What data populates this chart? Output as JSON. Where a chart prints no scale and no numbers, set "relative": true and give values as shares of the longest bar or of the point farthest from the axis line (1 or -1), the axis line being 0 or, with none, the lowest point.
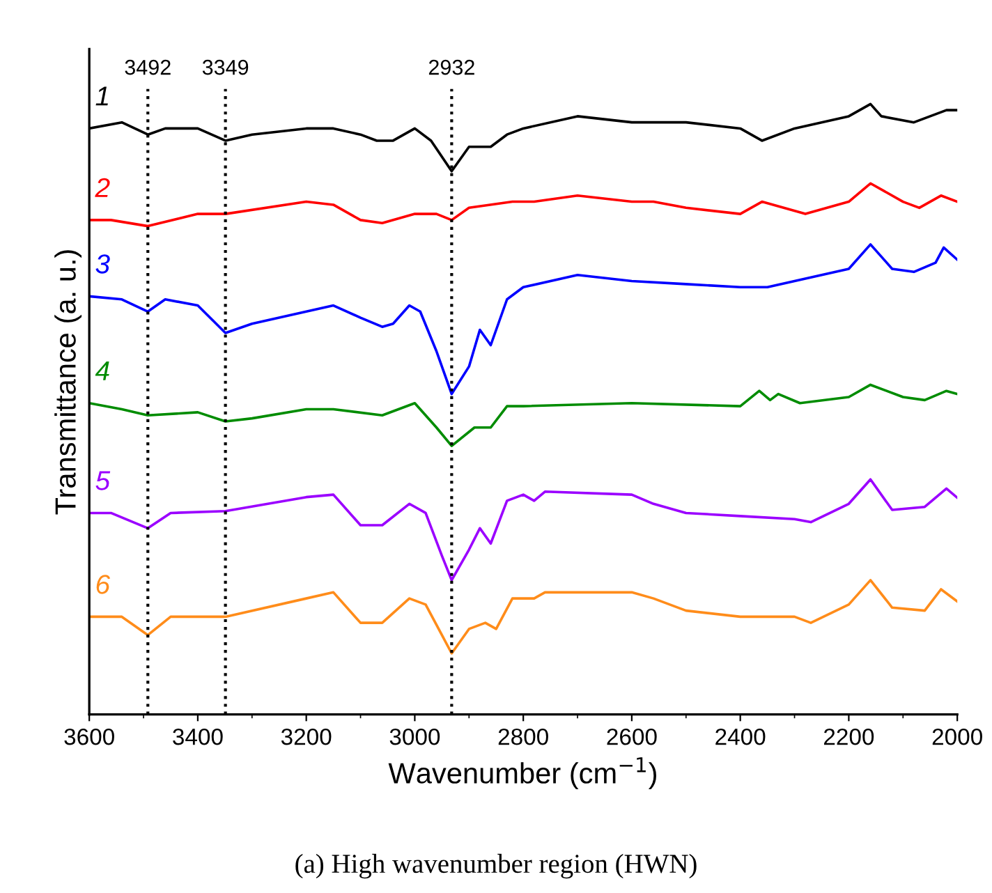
{
  "chart_data": {
    "type": "line",
    "relative": true,
    "xlabel": "Wavenumber (cm$^{−1}$)",
    "ylabel": "Transmittance (a. u.)",
    "xlim": [
      3600,
      2000
    ],
    "xticks": [
      3600,
      3400,
      3200,
      3000,
      2800,
      2600,
      2400,
      2200,
      2000
    ],
    "grid": false,
    "legend": false,
    "line_style": "solid",
    "marker": "none",
    "series": [
      {
        "name": "1",
        "color": "#000000",
        "x": [
          3600,
          3540,
          3492,
          3460,
          3400,
          3349,
          3300,
          3200,
          3150,
          3100,
          3070,
          3040,
          3000,
          2970,
          2932,
          2900,
          2860,
          2830,
          2800,
          2700,
          2600,
          2500,
          2400,
          2360,
          2300,
          2200,
          2160,
          2140,
          2080,
          2050,
          2020,
          2000
        ],
        "values": [
          0.96,
          0.97,
          0.95,
          0.96,
          0.96,
          0.94,
          0.95,
          0.96,
          0.96,
          0.95,
          0.94,
          0.94,
          0.96,
          0.94,
          0.89,
          0.93,
          0.93,
          0.95,
          0.96,
          0.98,
          0.97,
          0.97,
          0.96,
          0.94,
          0.96,
          0.98,
          1.0,
          0.98,
          0.97,
          0.98,
          0.99,
          0.99
        ]
      },
      {
        "name": "2",
        "color": "#ff0000",
        "x": [
          3600,
          3560,
          3492,
          3400,
          3349,
          3200,
          3150,
          3100,
          3060,
          3000,
          2960,
          2932,
          2900,
          2820,
          2780,
          2700,
          2600,
          2560,
          2500,
          2400,
          2360,
          2320,
          2280,
          2200,
          2160,
          2100,
          2070,
          2030,
          2000
        ],
        "values": [
          0.81,
          0.81,
          0.8,
          0.82,
          0.82,
          0.84,
          0.835,
          0.81,
          0.805,
          0.82,
          0.82,
          0.81,
          0.83,
          0.84,
          0.84,
          0.85,
          0.84,
          0.84,
          0.83,
          0.82,
          0.84,
          0.83,
          0.82,
          0.84,
          0.87,
          0.84,
          0.83,
          0.85,
          0.84
        ]
      },
      {
        "name": "3",
        "color": "#0000ff",
        "x": [
          3600,
          3540,
          3492,
          3460,
          3400,
          3349,
          3300,
          3200,
          3150,
          3100,
          3060,
          3040,
          3010,
          2990,
          2960,
          2932,
          2900,
          2880,
          2860,
          2830,
          2800,
          2700,
          2600,
          2500,
          2400,
          2350,
          2300,
          2200,
          2160,
          2120,
          2080,
          2040,
          2025,
          2000
        ],
        "values": [
          0.685,
          0.68,
          0.66,
          0.68,
          0.67,
          0.625,
          0.64,
          0.66,
          0.67,
          0.65,
          0.635,
          0.64,
          0.67,
          0.66,
          0.595,
          0.525,
          0.57,
          0.63,
          0.605,
          0.68,
          0.7,
          0.72,
          0.71,
          0.705,
          0.7,
          0.7,
          0.71,
          0.73,
          0.77,
          0.73,
          0.725,
          0.74,
          0.765,
          0.745
        ]
      },
      {
        "name": "4",
        "color": "#008c00",
        "x": [
          3600,
          3540,
          3492,
          3400,
          3349,
          3300,
          3200,
          3150,
          3060,
          3000,
          2960,
          2932,
          2890,
          2860,
          2830,
          2800,
          2600,
          2400,
          2365,
          2345,
          2330,
          2290,
          2200,
          2160,
          2100,
          2060,
          2020,
          2000
        ],
        "values": [
          0.51,
          0.5,
          0.49,
          0.495,
          0.48,
          0.485,
          0.5,
          0.5,
          0.49,
          0.51,
          0.47,
          0.44,
          0.47,
          0.47,
          0.505,
          0.505,
          0.51,
          0.505,
          0.53,
          0.515,
          0.525,
          0.51,
          0.52,
          0.54,
          0.52,
          0.515,
          0.53,
          0.525
        ]
      },
      {
        "name": "5",
        "color": "#9b00ff",
        "x": [
          3600,
          3560,
          3492,
          3450,
          3349,
          3200,
          3150,
          3100,
          3060,
          3010,
          2980,
          2950,
          2932,
          2900,
          2880,
          2860,
          2830,
          2800,
          2780,
          2760,
          2600,
          2560,
          2500,
          2400,
          2300,
          2270,
          2200,
          2160,
          2120,
          2060,
          2020,
          2000
        ],
        "values": [
          0.33,
          0.33,
          0.305,
          0.33,
          0.333,
          0.356,
          0.36,
          0.31,
          0.31,
          0.345,
          0.33,
          0.26,
          0.22,
          0.27,
          0.305,
          0.28,
          0.35,
          0.36,
          0.35,
          0.365,
          0.36,
          0.345,
          0.33,
          0.325,
          0.32,
          0.315,
          0.345,
          0.385,
          0.335,
          0.34,
          0.37,
          0.355
        ]
      },
      {
        "name": "6",
        "color": "#ff8c1a",
        "x": [
          3600,
          3540,
          3492,
          3450,
          3349,
          3200,
          3150,
          3100,
          3060,
          3010,
          2980,
          2950,
          2932,
          2900,
          2870,
          2850,
          2820,
          2780,
          2760,
          2600,
          2560,
          2500,
          2400,
          2300,
          2270,
          2200,
          2160,
          2120,
          2060,
          2030,
          2000
        ],
        "values": [
          0.16,
          0.16,
          0.13,
          0.16,
          0.16,
          0.19,
          0.2,
          0.15,
          0.15,
          0.19,
          0.18,
          0.13,
          0.1,
          0.14,
          0.15,
          0.14,
          0.19,
          0.19,
          0.2,
          0.2,
          0.19,
          0.17,
          0.16,
          0.16,
          0.15,
          0.18,
          0.22,
          0.175,
          0.17,
          0.205,
          0.185
        ]
      }
    ],
    "ref_lines": [
      {
        "axis": "x",
        "value": 3492,
        "label": "3492",
        "color": "#000000",
        "line_style": "dotted"
      },
      {
        "axis": "x",
        "value": 3349,
        "label": "3349",
        "color": "#000000",
        "line_style": "dotted"
      },
      {
        "axis": "x",
        "value": 2932,
        "label": "2932",
        "color": "#000000",
        "line_style": "dotted"
      }
    ],
    "annotations": [
      "(a) High wavenumber region (HWN)"
    ]
  }
}
